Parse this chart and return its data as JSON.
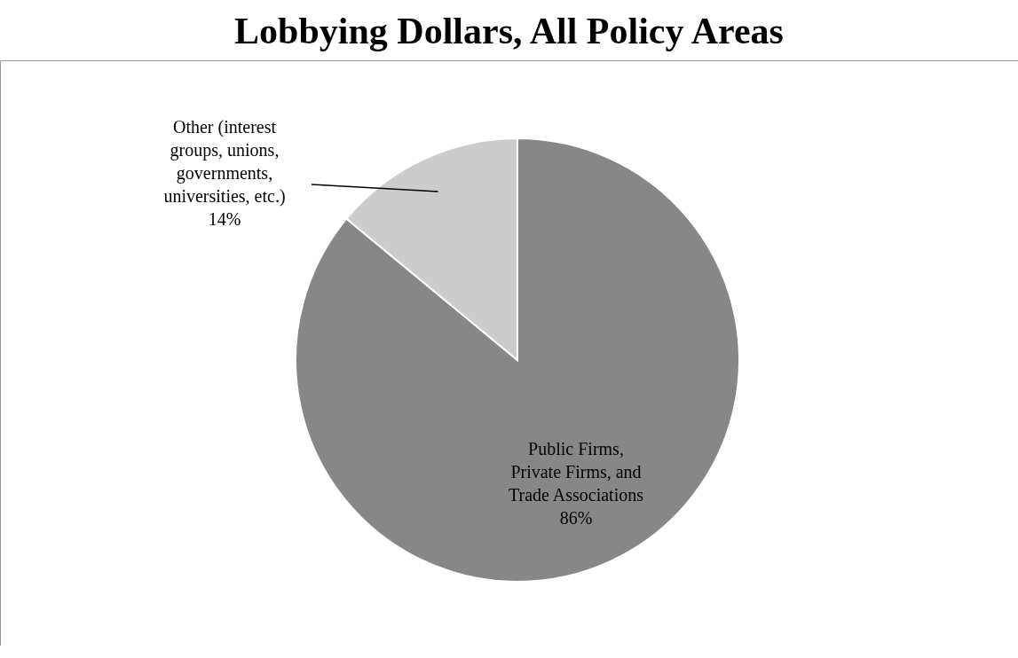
{
  "chart_data": {
    "type": "pie",
    "title": "Lobbying Dollars, All Policy Areas",
    "categories": [
      "Public Firms, Private Firms, and Trade Associations",
      "Other (interest groups, unions, governments, universities, etc.)"
    ],
    "values": [
      86,
      14
    ],
    "colors": [
      "#878787",
      "#cccccc"
    ],
    "value_labels": [
      "86%",
      "14%"
    ],
    "legend": false
  }
}
